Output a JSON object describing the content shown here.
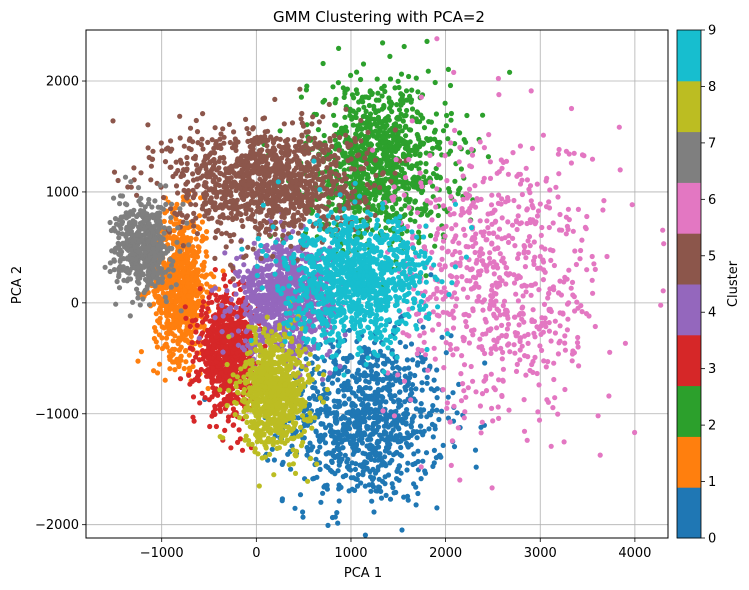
{
  "chart_data": {
    "type": "scatter",
    "title": "GMM Clustering with PCA=2",
    "xlabel": "PCA 1",
    "ylabel": "PCA 2",
    "xlim": [
      -1800,
      4350
    ],
    "ylim": [
      -2120,
      2460
    ],
    "xticks": [
      -1000,
      0,
      1000,
      2000,
      3000,
      4000
    ],
    "yticks": [
      -2000,
      -1000,
      0,
      1000,
      2000
    ],
    "grid": true,
    "colorbar": {
      "label": "Cluster",
      "ticks": [
        0,
        1,
        2,
        3,
        4,
        5,
        6,
        7,
        8,
        9
      ],
      "colors": [
        "#1f77b4",
        "#ff7f0e",
        "#2ca02c",
        "#d62728",
        "#9467bd",
        "#8c564b",
        "#e377c2",
        "#7f7f7f",
        "#bcbd22",
        "#17becf"
      ]
    },
    "clusters": [
      {
        "id": 0,
        "center": [
          1150,
          -1050
        ],
        "spread": [
          420,
          380
        ],
        "count": 950
      },
      {
        "id": 1,
        "center": [
          -800,
          150
        ],
        "spread": [
          140,
          320
        ],
        "count": 800
      },
      {
        "id": 2,
        "center": [
          1300,
          1250
        ],
        "spread": [
          380,
          380
        ],
        "count": 1000
      },
      {
        "id": 3,
        "center": [
          -300,
          -450
        ],
        "spread": [
          150,
          250
        ],
        "count": 800
      },
      {
        "id": 4,
        "center": [
          300,
          50
        ],
        "spread": [
          250,
          250
        ],
        "count": 900
      },
      {
        "id": 5,
        "center": [
          100,
          1100
        ],
        "spread": [
          500,
          250
        ],
        "count": 1200
      },
      {
        "id": 6,
        "center": [
          2550,
          200
        ],
        "spread": [
          550,
          650
        ],
        "count": 750
      },
      {
        "id": 7,
        "center": [
          -1200,
          500
        ],
        "spread": [
          150,
          200
        ],
        "count": 500
      },
      {
        "id": 8,
        "center": [
          200,
          -800
        ],
        "spread": [
          180,
          260
        ],
        "count": 800
      },
      {
        "id": 9,
        "center": [
          1050,
          200
        ],
        "spread": [
          380,
          280
        ],
        "count": 1100
      }
    ]
  }
}
